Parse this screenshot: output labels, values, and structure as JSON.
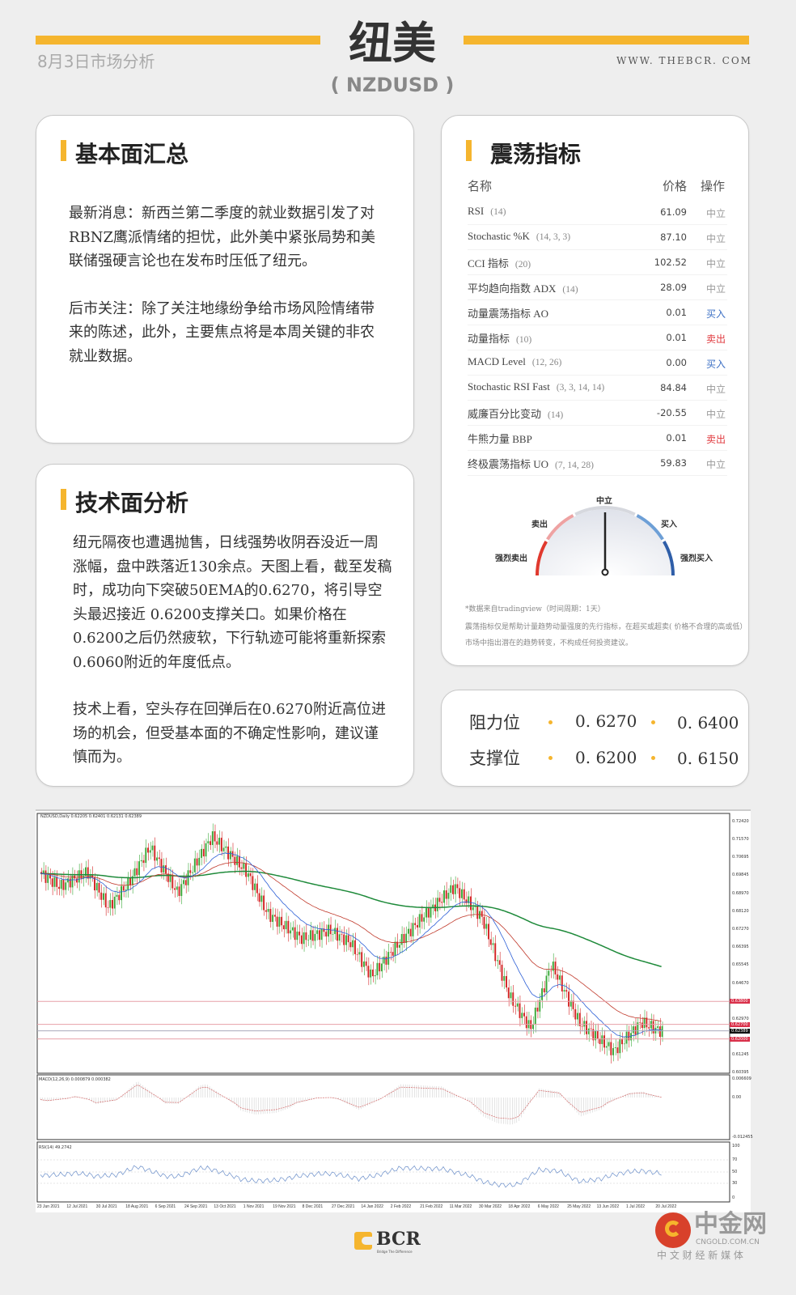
{
  "header": {
    "date_label": "8月3日市场分析",
    "title": "纽美",
    "subtitle": "( NZDUSD )",
    "website": "WWW. THEBCR. COM"
  },
  "fundamental": {
    "title": "基本面汇总",
    "paragraphs": [
      "最新消息：新西兰第二季度的就业数据引发了对RBNZ鹰派情绪的担忧，此外美中紧张局势和美联储强硬言论也在发布时压低了纽元。",
      "后市关注：除了关注地缘纷争给市场风险情绪带来的陈述，此外，主要焦点将是本周关键的非农就业数据。"
    ]
  },
  "technical": {
    "title": "技术面分析",
    "paragraphs": [
      "纽元隔夜也遭遇抛售，日线强势收阴吞没近一周涨幅，盘中跌落近130余点。天图上看，截至发稿时，成功向下突破50EMA的0.6270，将引导空头最迟接近 0.6200支撑关口。如果价格在0.6200之后仍然疲软，下行轨迹可能将重新探索0.6060附近的年度低点。",
      "技术上看，空头存在回弹后在0.6270附近高位进场的机会，但受基本面的不确定性影响，建议谨慎而为。"
    ]
  },
  "oscillators": {
    "title": "震荡指标",
    "col_name": "名称",
    "col_price": "价格",
    "col_action": "操作",
    "rows": [
      {
        "name": "RSI",
        "params": "(14)",
        "value": "61.09",
        "action": "中立"
      },
      {
        "name": "Stochastic %K",
        "params": "(14, 3, 3)",
        "value": "87.10",
        "action": "中立"
      },
      {
        "name": "CCI 指标",
        "params": "(20)",
        "value": "102.52",
        "action": "中立"
      },
      {
        "name": "平均趋向指数 ADX",
        "params": "(14)",
        "value": "28.09",
        "action": "中立"
      },
      {
        "name": "动量震荡指标 AO",
        "params": "",
        "value": "0.01",
        "action": "买入"
      },
      {
        "name": "动量指标",
        "params": "(10)",
        "value": "0.01",
        "action": "卖出"
      },
      {
        "name": "MACD Level",
        "params": "(12, 26)",
        "value": "0.00",
        "action": "买入"
      },
      {
        "name": "Stochastic RSI Fast",
        "params": "(3, 3, 14, 14)",
        "value": "84.84",
        "action": "中立"
      },
      {
        "name": "威廉百分比变动",
        "params": "(14)",
        "value": "-20.55",
        "action": "中立"
      },
      {
        "name": "牛熊力量 BBP",
        "params": "",
        "value": "0.01",
        "action": "卖出"
      },
      {
        "name": "终极震荡指标 UO",
        "params": "(7, 14, 28)",
        "value": "59.83",
        "action": "中立"
      }
    ],
    "action_colors": {
      "中立": "#999999",
      "买入": "#3b6fc4",
      "卖出": "#e0393e"
    },
    "gauge": {
      "labels": {
        "strong_sell": "强烈卖出",
        "sell": "卖出",
        "neutral": "中立",
        "buy": "买入",
        "strong_buy": "强烈买入"
      },
      "reading": "中立"
    },
    "note1": "*数据来自tradingview（时间周期：1天）",
    "note2": "震荡指标仅是帮助计量趋势动量强度的先行指标，在超买或超卖( 价格不合理的高或低）市场中指出潜在的趋势转变，不构成任何投资建议。"
  },
  "levels": {
    "resistance_label": "阻力位",
    "resistance": [
      "0. 6270",
      "0. 6400"
    ],
    "support_label": "支撑位",
    "support": [
      "0. 6200",
      "0. 6150"
    ]
  },
  "chart": {
    "header": "NZDUSD,Daily  0.62205 0.62401 0.62131 0.62389",
    "price_ticks": [
      "0.72420",
      "0.71570",
      "0.70695",
      "0.69845",
      "0.68970",
      "0.68120",
      "0.67270",
      "0.66395",
      "0.65545",
      "0.64670",
      "0.62970",
      "0.61245",
      "0.60395"
    ],
    "marked_levels": [
      {
        "label": "0.63800",
        "color": "#d9304a"
      },
      {
        "label": "0.62700",
        "color": "#d9304a"
      },
      {
        "label": "0.62389",
        "color": "#111111"
      },
      {
        "label": "0.62000",
        "color": "#d9304a"
      }
    ],
    "macd_header": "MACD(12,26,9) 0.000879 0.000382",
    "macd_ticks": [
      "0.006609",
      "0.00",
      "-0.012455"
    ],
    "rsi_header": "RSI(14) 49.2742",
    "rsi_ticks": [
      "100",
      "70",
      "50",
      "30",
      "0"
    ],
    "dates": [
      "23 Jun 2021",
      "12 Jul 2021",
      "30 Jul 2021",
      "18 Aug 2021",
      "6 Sep 2021",
      "24 Sep 2021",
      "13 Oct 2021",
      "1 Nov 2021",
      "19 Nov 2021",
      "8 Dec 2021",
      "27 Dec 2021",
      "14 Jan 2022",
      "2 Feb 2022",
      "21 Feb 2022",
      "11 Mar 2022",
      "30 Mar 2022",
      "18 Apr 2022",
      "6 May 2022",
      "25 May 2022",
      "13 Jun 2022",
      "1 Jul 2022",
      "20 Jul 2022"
    ]
  },
  "footer": {
    "bcr_logo": "BCR",
    "bcr_tagline": "Bridge The Difference",
    "cngold_logo": "中金网",
    "cngold_domain": "CNGOLD.COM.CN",
    "cngold_tagline": "中 文 财 经 新 媒 体"
  }
}
